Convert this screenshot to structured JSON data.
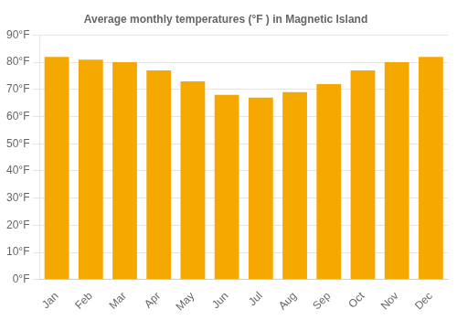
{
  "chart_data": {
    "type": "bar",
    "title": "Average monthly temperatures (°F ) in Magnetic Island",
    "categories": [
      "Jan",
      "Feb",
      "Mar",
      "Apr",
      "May",
      "Jun",
      "Jul",
      "Aug",
      "Sep",
      "Oct",
      "Nov",
      "Dec"
    ],
    "values": [
      82,
      81,
      80,
      77,
      73,
      68,
      67,
      69,
      72,
      77,
      80,
      82
    ],
    "color": "#F5A800",
    "ylim": [
      0,
      90
    ],
    "yticks": [
      {
        "value": 0,
        "label": "0°F"
      },
      {
        "value": 10,
        "label": "10°F"
      },
      {
        "value": 20,
        "label": "20°F"
      },
      {
        "value": 30,
        "label": "30°F"
      },
      {
        "value": 40,
        "label": "40°F"
      },
      {
        "value": 50,
        "label": "50°F"
      },
      {
        "value": 60,
        "label": "60°F"
      },
      {
        "value": 70,
        "label": "70°F"
      },
      {
        "value": 80,
        "label": "80°F"
      },
      {
        "value": 90,
        "label": "90°F"
      }
    ],
    "grid": true
  }
}
